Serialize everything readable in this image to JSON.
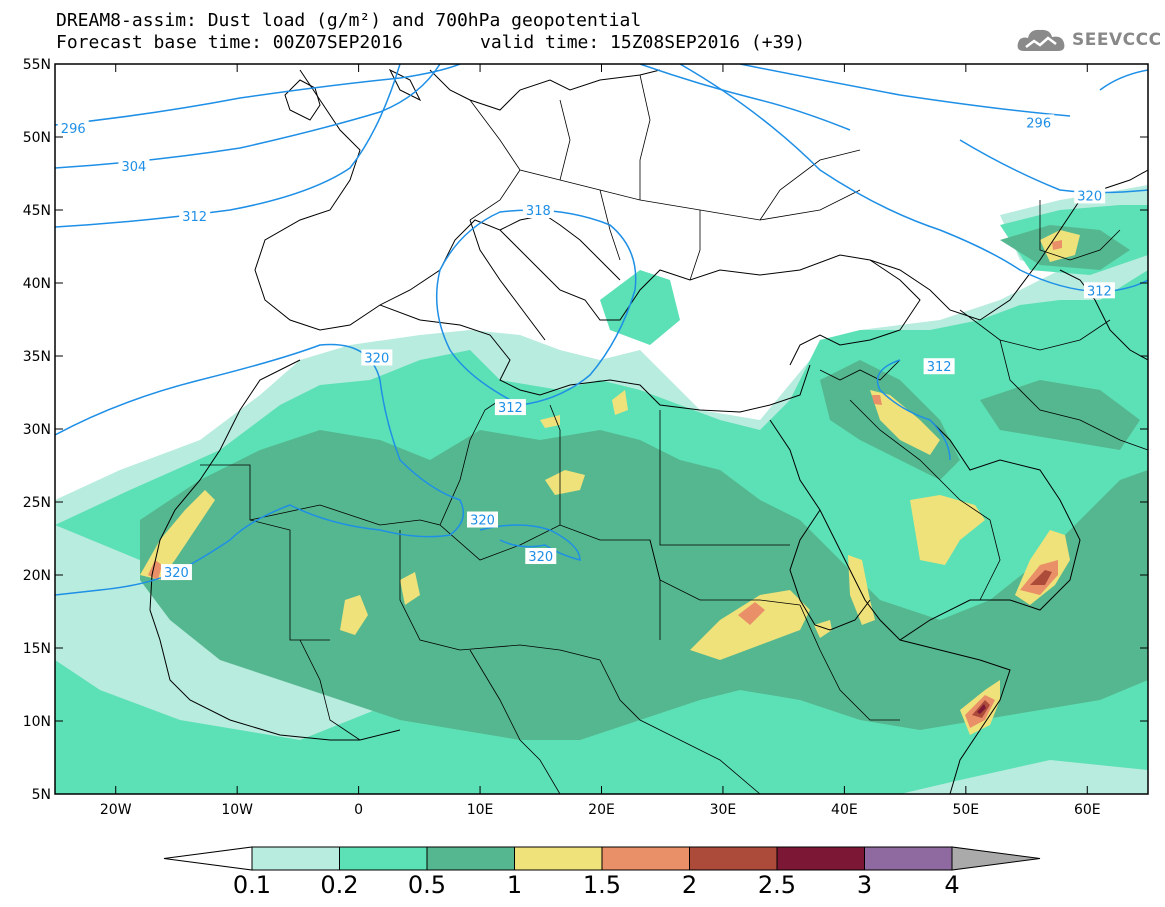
{
  "title": {
    "line1": "DREAM8-assim: Dust load (g/m²) and 700hPa geopotential",
    "line2": "Forecast base time: 00Z07SEP2016",
    "valid_time": "valid time: 15Z08SEP2016 (+39)"
  },
  "logo": {
    "text": "SEEVCCC",
    "icon": "cloud-icon"
  },
  "map": {
    "lon_range": [
      -25,
      65
    ],
    "lat_range": [
      5,
      55
    ],
    "lat_ticks": [
      "55N",
      "50N",
      "45N",
      "40N",
      "35N",
      "30N",
      "25N",
      "20N",
      "15N",
      "10N",
      "5N"
    ],
    "lon_ticks": [
      "20W",
      "10W",
      "0",
      "10E",
      "20E",
      "30E",
      "40E",
      "50E",
      "60E"
    ],
    "contour_color": "#1e8fe6",
    "contour_labels": [
      {
        "text": "296",
        "lon": -23.5,
        "lat": 50.6
      },
      {
        "text": "304",
        "lon": -18.5,
        "lat": 48.0
      },
      {
        "text": "312",
        "lon": -13.5,
        "lat": 44.6
      },
      {
        "text": "320",
        "lon": 1.5,
        "lat": 34.9
      },
      {
        "text": "312",
        "lon": 12.5,
        "lat": 31.5
      },
      {
        "text": "320",
        "lon": 10.2,
        "lat": 23.8
      },
      {
        "text": "320",
        "lon": 15.0,
        "lat": 21.3
      },
      {
        "text": "320",
        "lon": -15.0,
        "lat": 20.2
      },
      {
        "text": "312",
        "lon": 47.8,
        "lat": 34.3
      },
      {
        "text": "312",
        "lon": 61.0,
        "lat": 39.5
      },
      {
        "text": "296",
        "lon": 56.0,
        "lat": 51.0
      },
      {
        "text": "320",
        "lon": 60.2,
        "lat": 46.0
      },
      {
        "text": "318",
        "lon": 14.8,
        "lat": 45.0
      }
    ]
  },
  "colorbar": {
    "labels": [
      "0.1",
      "0.2",
      "0.5",
      "1",
      "1.5",
      "2",
      "2.5",
      "3",
      "4"
    ],
    "colors": [
      "#b8ecde",
      "#5ce0b5",
      "#55b78f",
      "#f0e27a",
      "#ea9068",
      "#ad4b3b",
      "#7c1836",
      "#8e6aa0"
    ],
    "under_color": "#ffffff",
    "over_color": "#aaaaaa"
  }
}
